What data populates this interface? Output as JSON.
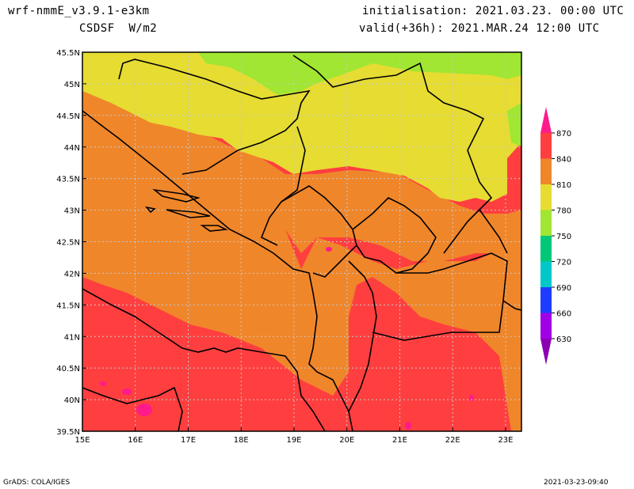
{
  "header": {
    "model": "wrf-nmmE_v3.9.1-e3km",
    "field": "CSDSF  W/m2",
    "init": "initialisation: 2021.03.23. 00:00 UTC",
    "valid": "valid(+36h): 2021.MAR.24 12:00 UTC"
  },
  "footer": {
    "left": "GrADS: COLA/IGES",
    "right": "2021-03-23-09:40"
  },
  "colors": {
    "c870": "#ff1a8c",
    "c840": "#ff3f3f",
    "c810": "#f0862a",
    "c780": "#e6dc32",
    "c750": "#a0e632",
    "c720": "#00c878",
    "c690": "#00c8c8",
    "c660": "#1e3cff",
    "c630": "#a000e6",
    "low": "#8c00b4"
  },
  "chart_data": {
    "type": "heatmap",
    "x_ticks": [
      "15E",
      "16E",
      "17E",
      "18E",
      "19E",
      "20E",
      "21E",
      "22E",
      "23E"
    ],
    "y_ticks": [
      "39.5N",
      "40N",
      "40.5N",
      "41N",
      "41.5N",
      "42N",
      "42.5N",
      "43N",
      "43.5N",
      "44N",
      "44.5N",
      "45N",
      "45.5N"
    ],
    "xlim": [
      15,
      23.3
    ],
    "ylim": [
      39.5,
      45.5
    ],
    "legend_labels": [
      "870",
      "840",
      "810",
      "780",
      "750",
      "720",
      "690",
      "660",
      "630"
    ],
    "unit": "W/m2"
  }
}
